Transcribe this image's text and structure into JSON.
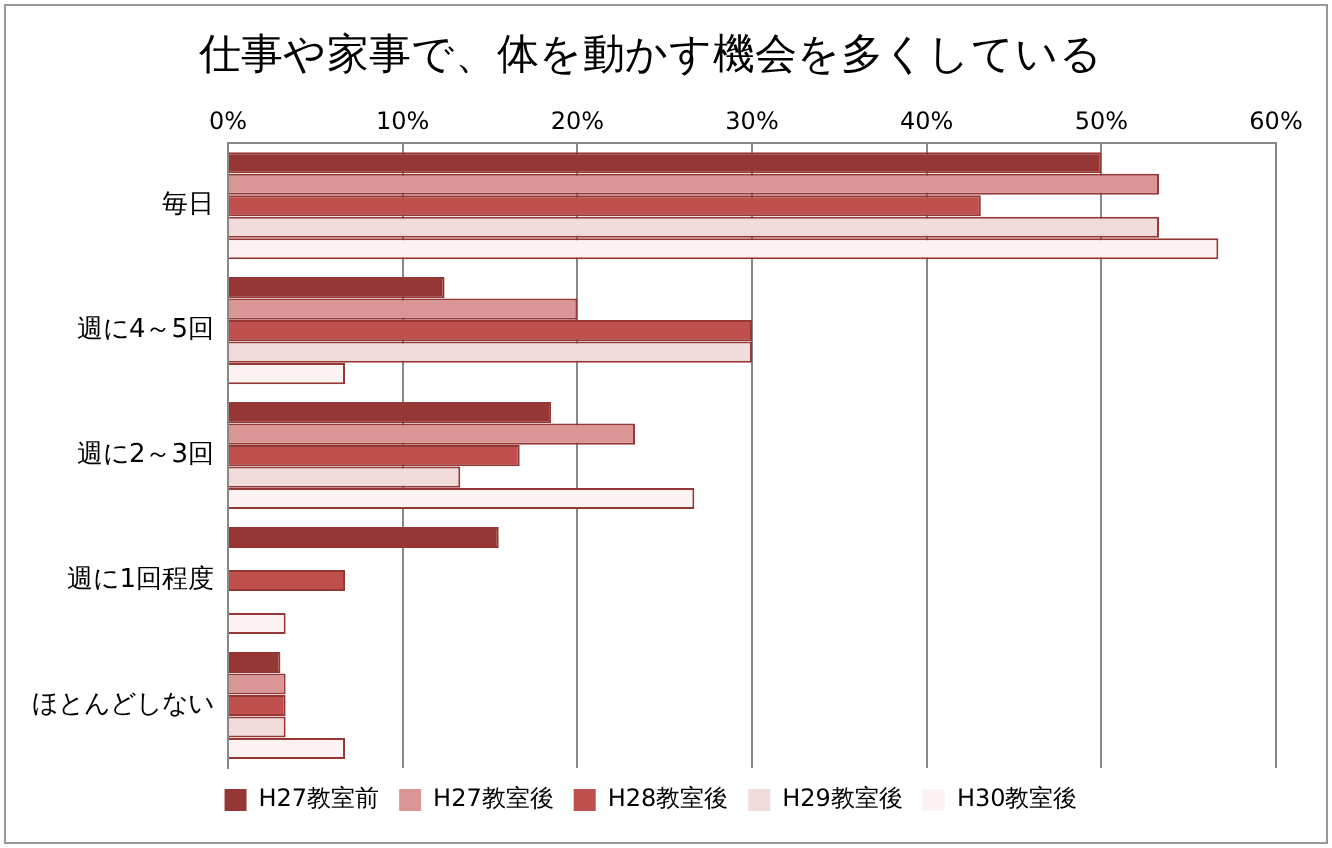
{
  "chart_data": {
    "type": "bar",
    "orientation": "horizontal",
    "title": "仕事や家事で、体を動かす機会を多くしている",
    "categories": [
      "毎日",
      "週に4～5回",
      "週に2～3回",
      "週に1回程度",
      "ほとんどしない"
    ],
    "series": [
      {
        "name": "H27教室前",
        "color": "#953735",
        "values": [
          50,
          12.4,
          18.5,
          15.5,
          3
        ]
      },
      {
        "name": "H27教室後",
        "color": "#d99694",
        "values": [
          53.3,
          20,
          23.3,
          0,
          3.3
        ]
      },
      {
        "name": "H28教室後",
        "color": "#c0504d",
        "values": [
          43.1,
          30,
          16.7,
          6.7,
          3.3
        ]
      },
      {
        "name": "H29教室後",
        "color": "#f2dcdb",
        "values": [
          53.3,
          30,
          13.3,
          0,
          3.3
        ]
      },
      {
        "name": "H30教室後",
        "color": "#fdf2f2",
        "values": [
          56.7,
          6.7,
          26.7,
          3.3,
          6.7
        ]
      }
    ],
    "xlim": [
      0,
      60
    ],
    "xticks": [
      {
        "value": 0,
        "label": "0%"
      },
      {
        "value": 10,
        "label": "10%"
      },
      {
        "value": 20,
        "label": "20%"
      },
      {
        "value": 30,
        "label": "30%"
      },
      {
        "value": 40,
        "label": "40%"
      },
      {
        "value": 50,
        "label": "50%"
      },
      {
        "value": 60,
        "label": "60%"
      }
    ],
    "grid": "x",
    "legend": "bottom"
  }
}
